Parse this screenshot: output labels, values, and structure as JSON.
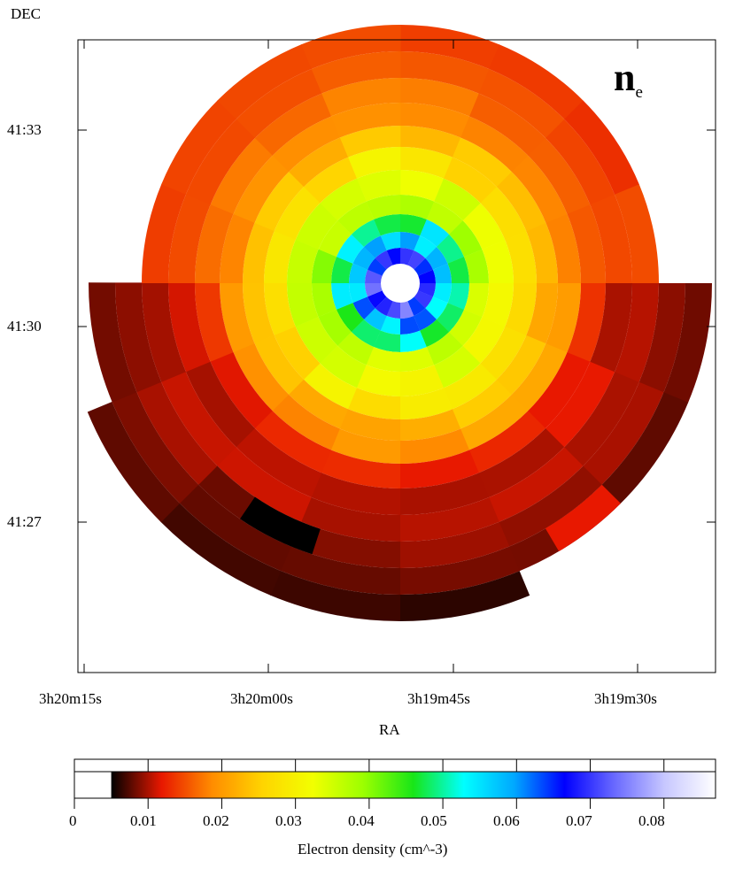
{
  "chart_data": [
    {
      "type": "heatmap",
      "ylabel": "DEC",
      "xlabel": "RA",
      "annotation": {
        "main": "n",
        "sub": "e"
      },
      "x_ticks": [
        "3h20m15s",
        "3h20m00s",
        "3h19m45s",
        "3h19m30s"
      ],
      "y_ticks": [
        "41:33",
        "41:30",
        "41:27"
      ],
      "ring_density": [
        {
          "ring": 1,
          "value": 0.07
        },
        {
          "ring": 2,
          "value": 0.058
        },
        {
          "ring": 3,
          "value": 0.05
        },
        {
          "ring": 4,
          "value": 0.037
        },
        {
          "ring": 5,
          "value": 0.033
        },
        {
          "ring": 6,
          "value": 0.028
        },
        {
          "ring": 7,
          "value": 0.023
        },
        {
          "ring": 8,
          "value": 0.02
        },
        {
          "ring": 9,
          "value": 0.014
        },
        {
          "ring": 10,
          "value": 0.012
        },
        {
          "ring": 11,
          "value": 0.011
        },
        {
          "ring": 12,
          "value": 0.01
        },
        {
          "ring": 13,
          "value": 0.009
        },
        {
          "ring": 14,
          "value": 0.008
        }
      ]
    },
    {
      "type": "colorbar",
      "xlabel": "Electron density (cm^-3)",
      "ticks": [
        "0",
        "0.01",
        "0.02",
        "0.03",
        "0.04",
        "0.05",
        "0.06",
        "0.07",
        "0.08"
      ],
      "range": [
        0,
        0.087
      ],
      "colormap_start": 0.005,
      "colormap": [
        "#000000",
        "#e81800",
        "#ff8c00",
        "#ffd400",
        "#f2ff00",
        "#9cff00",
        "#18e618",
        "#00ffff",
        "#00a8ff",
        "#0000ff",
        "#6a6aff",
        "#c8c8ff",
        "#ffffff"
      ]
    }
  ]
}
